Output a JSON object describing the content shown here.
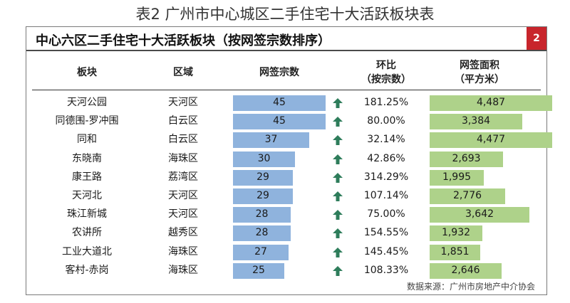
{
  "caption": "表2 广州市中心城区二手住宅十大活跃板块表",
  "panel": {
    "title": "中心六区二手住宅十大活跃板块（按网签宗数排序）",
    "badge": "2",
    "badge_color": "#c8252c"
  },
  "columns": {
    "plate": "板块",
    "district": "区域",
    "count": "网签宗数",
    "ratio_line1": "环比",
    "ratio_line2": "（按宗数）",
    "area_line1": "网签面积",
    "area_line2": "（平方米）"
  },
  "colors": {
    "count_bar": "#8fb3dd",
    "area_bar": "#aed28a",
    "arrow": "#2e7d5b"
  },
  "rows": [
    {
      "plate": "天河公园",
      "district": "天河区",
      "count": "45",
      "trend_icon": "up-arrow-icon",
      "ratio": "181.25%",
      "area": "4,487"
    },
    {
      "plate": "同德围-罗冲围",
      "district": "白云区",
      "count": "45",
      "trend_icon": "up-arrow-icon",
      "ratio": "80.00%",
      "area": "3,384"
    },
    {
      "plate": "同和",
      "district": "白云区",
      "count": "37",
      "trend_icon": "up-arrow-icon",
      "ratio": "32.14%",
      "area": "4,477"
    },
    {
      "plate": "东晓南",
      "district": "海珠区",
      "count": "30",
      "trend_icon": "up-arrow-icon",
      "ratio": "42.86%",
      "area": "2,693"
    },
    {
      "plate": "康王路",
      "district": "荔湾区",
      "count": "29",
      "trend_icon": "up-arrow-icon",
      "ratio": "314.29%",
      "area": "1,995"
    },
    {
      "plate": "天河北",
      "district": "天河区",
      "count": "29",
      "trend_icon": "up-arrow-icon",
      "ratio": "107.14%",
      "area": "2,776"
    },
    {
      "plate": "珠江新城",
      "district": "天河区",
      "count": "28",
      "trend_icon": "up-arrow-icon",
      "ratio": "75.00%",
      "area": "3,642"
    },
    {
      "plate": "农讲所",
      "district": "越秀区",
      "count": "28",
      "trend_icon": "up-arrow-icon",
      "ratio": "154.55%",
      "area": "1,932"
    },
    {
      "plate": "工业大道北",
      "district": "海珠区",
      "count": "27",
      "trend_icon": "up-arrow-icon",
      "ratio": "145.45%",
      "area": "1,851"
    },
    {
      "plate": "客村-赤岗",
      "district": "海珠区",
      "count": "25",
      "trend_icon": "up-arrow-icon",
      "ratio": "108.33%",
      "area": "2,646"
    }
  ],
  "source": "数据来源：广州市房地产中介协会"
}
